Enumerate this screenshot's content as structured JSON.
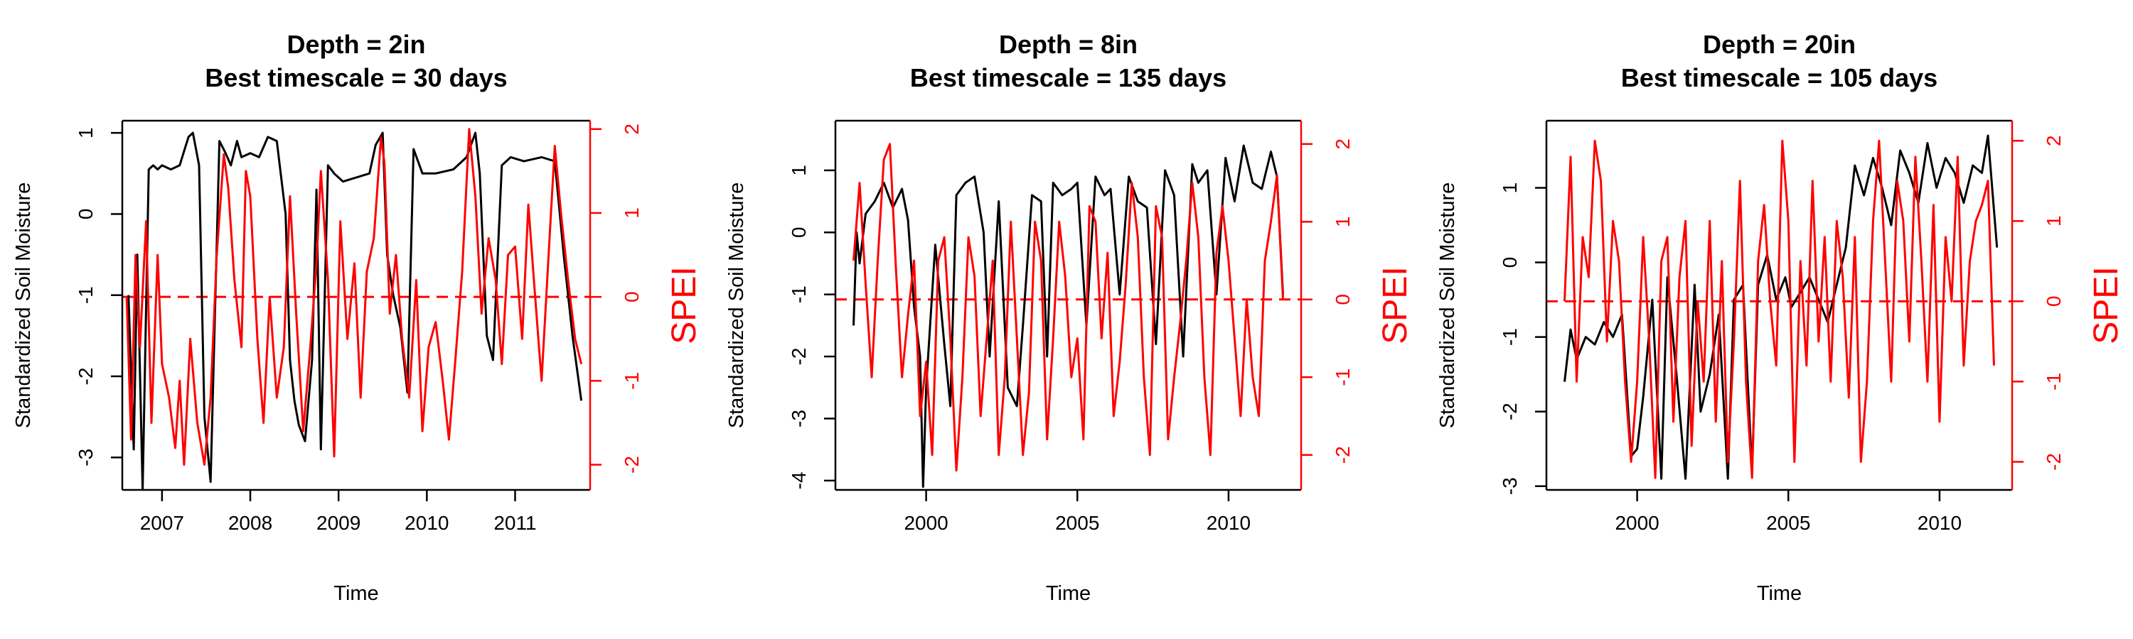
{
  "chart_data": [
    {
      "type": "line",
      "title": "Depth = 2in",
      "subtitle": "Best timescale = 30 days",
      "xlabel": "Time",
      "ylabel": "Standardized Soil Moisture",
      "y2label": "SPEI",
      "xlim": [
        2006.55,
        2011.85
      ],
      "ylim": [
        -3.4,
        1.15
      ],
      "y2lim": [
        -2.3,
        2.1
      ],
      "x_ticks": [
        2007,
        2008,
        2009,
        2010,
        2011
      ],
      "y_ticks": [
        -3,
        -2,
        -1,
        0,
        1
      ],
      "y2_ticks": [
        -2,
        -1,
        0,
        1,
        2
      ],
      "reference_line": {
        "axis": "y2",
        "value": 0,
        "style": "dashed",
        "color": "#ff0000"
      },
      "grid": false,
      "colors": {
        "soil_moisture": "#000000",
        "spei": "#ff0000"
      },
      "series": [
        {
          "axis": "y",
          "x": [
            2006.62,
            2006.68,
            2006.72,
            2006.78,
            2006.85,
            2006.9,
            2006.95,
            2007.0,
            2007.1,
            2007.2,
            2007.3,
            2007.35,
            2007.42,
            2007.48,
            2007.55,
            2007.65,
            2007.72,
            2007.78,
            2007.85,
            2007.9,
            2008.0,
            2008.1,
            2008.2,
            2008.3,
            2008.4,
            2008.45,
            2008.5,
            2008.55,
            2008.62,
            2008.7,
            2008.75,
            2008.8,
            2008.88,
            2008.95,
            2009.05,
            2009.2,
            2009.35,
            2009.42,
            2009.5,
            2009.55,
            2009.62,
            2009.7,
            2009.78,
            2009.85,
            2009.95,
            2010.1,
            2010.3,
            2010.45,
            2010.55,
            2010.6,
            2010.68,
            2010.75,
            2010.85,
            2010.95,
            2011.1,
            2011.3,
            2011.45,
            2011.55,
            2011.65,
            2011.75
          ],
          "values": [
            -1.0,
            -2.9,
            -0.5,
            -3.4,
            0.55,
            0.6,
            0.55,
            0.6,
            0.55,
            0.6,
            0.95,
            1.0,
            0.6,
            -2.5,
            -3.3,
            0.9,
            0.75,
            0.6,
            0.9,
            0.7,
            0.75,
            0.7,
            0.95,
            0.9,
            0.0,
            -1.8,
            -2.3,
            -2.6,
            -2.8,
            -1.8,
            0.3,
            -2.9,
            0.6,
            0.5,
            0.4,
            0.45,
            0.5,
            0.85,
            1.0,
            -0.5,
            -1.0,
            -1.4,
            -2.2,
            0.8,
            0.5,
            0.5,
            0.55,
            0.7,
            1.0,
            0.5,
            -1.5,
            -1.8,
            0.6,
            0.7,
            0.65,
            0.7,
            0.65,
            -0.5,
            -1.5,
            -2.3
          ]
        },
        {
          "axis": "y2",
          "x": [
            2006.6,
            2006.65,
            2006.7,
            2006.75,
            2006.82,
            2006.88,
            2006.95,
            2007.0,
            2007.08,
            2007.15,
            2007.2,
            2007.25,
            2007.32,
            2007.4,
            2007.48,
            2007.55,
            2007.62,
            2007.7,
            2007.75,
            2007.82,
            2007.9,
            2007.95,
            2008.0,
            2008.08,
            2008.15,
            2008.22,
            2008.3,
            2008.38,
            2008.45,
            2008.52,
            2008.6,
            2008.68,
            2008.75,
            2008.8,
            2008.88,
            2008.95,
            2009.02,
            2009.1,
            2009.18,
            2009.25,
            2009.32,
            2009.4,
            2009.48,
            2009.52,
            2009.58,
            2009.65,
            2009.72,
            2009.8,
            2009.88,
            2009.95,
            2010.02,
            2010.1,
            2010.18,
            2010.25,
            2010.32,
            2010.4,
            2010.48,
            2010.55,
            2010.62,
            2010.7,
            2010.78,
            2010.85,
            2010.92,
            2011.0,
            2011.08,
            2011.15,
            2011.22,
            2011.3,
            2011.38,
            2011.45,
            2011.52,
            2011.6,
            2011.68,
            2011.75
          ],
          "values": [
            0.0,
            -1.7,
            0.5,
            -0.6,
            0.9,
            -1.5,
            0.5,
            -0.8,
            -1.2,
            -1.8,
            -1.0,
            -2.0,
            -0.5,
            -1.5,
            -2.0,
            -1.2,
            0.5,
            1.7,
            1.3,
            0.2,
            -0.6,
            1.5,
            1.2,
            -0.5,
            -1.5,
            0.0,
            -1.2,
            -0.6,
            1.2,
            -0.2,
            -1.6,
            -0.6,
            0.4,
            1.5,
            0.2,
            -1.9,
            0.9,
            -0.5,
            0.4,
            -1.2,
            0.3,
            0.7,
            1.9,
            1.6,
            -0.2,
            0.5,
            -0.5,
            -1.2,
            0.2,
            -1.6,
            -0.6,
            -0.3,
            -1.0,
            -1.7,
            -0.8,
            0.3,
            2.0,
            1.2,
            -0.2,
            0.7,
            0.2,
            -0.8,
            0.5,
            0.6,
            -0.5,
            1.1,
            0.1,
            -1.0,
            0.5,
            1.8,
            1.0,
            0.2,
            -0.5,
            -0.8
          ]
        }
      ]
    },
    {
      "type": "line",
      "title": "Depth = 8in",
      "subtitle": "Best timescale = 135 days",
      "xlabel": "Time",
      "ylabel": "Standardized Soil Moisture",
      "y2label": "SPEI",
      "xlim": [
        1997.0,
        2012.4
      ],
      "ylim": [
        -4.15,
        1.8
      ],
      "y2lim": [
        -2.45,
        2.3
      ],
      "x_ticks": [
        2000,
        2005,
        2010
      ],
      "y_ticks": [
        -4,
        -3,
        -2,
        -1,
        0,
        1
      ],
      "y2_ticks": [
        -2,
        -1,
        0,
        1,
        2
      ],
      "reference_line": {
        "axis": "y2",
        "value": 0,
        "style": "dashed",
        "color": "#ff0000"
      },
      "grid": false,
      "colors": {
        "soil_moisture": "#000000",
        "spei": "#ff0000"
      },
      "series": [
        {
          "axis": "y",
          "x": [
            1997.6,
            1997.7,
            1997.8,
            1998.0,
            1998.3,
            1998.6,
            1998.9,
            1999.2,
            1999.4,
            1999.6,
            1999.8,
            1999.9,
            2000.0,
            2000.3,
            2000.6,
            2000.8,
            2001.0,
            2001.3,
            2001.6,
            2001.9,
            2002.1,
            2002.4,
            2002.7,
            2003.0,
            2003.2,
            2003.5,
            2003.8,
            2004.0,
            2004.2,
            2004.5,
            2004.8,
            2005.0,
            2005.3,
            2005.6,
            2005.9,
            2006.1,
            2006.4,
            2006.7,
            2007.0,
            2007.3,
            2007.6,
            2007.9,
            2008.2,
            2008.5,
            2008.8,
            2009.0,
            2009.3,
            2009.6,
            2009.9,
            2010.2,
            2010.5,
            2010.8,
            2011.1,
            2011.4,
            2011.6,
            2011.8
          ],
          "values": [
            -1.5,
            0.0,
            -0.5,
            0.3,
            0.5,
            0.8,
            0.4,
            0.7,
            0.2,
            -1.2,
            -2.0,
            -4.1,
            -2.5,
            -0.2,
            -1.8,
            -2.8,
            0.6,
            0.8,
            0.9,
            0.0,
            -2.0,
            0.5,
            -2.5,
            -2.8,
            -1.5,
            0.6,
            0.5,
            -2.0,
            0.8,
            0.6,
            0.7,
            0.8,
            -1.5,
            0.9,
            0.6,
            0.7,
            -1.0,
            0.9,
            0.5,
            0.4,
            -1.8,
            1.0,
            0.6,
            -2.0,
            1.1,
            0.8,
            1.0,
            -1.0,
            1.2,
            0.5,
            1.4,
            0.8,
            0.7,
            1.3,
            0.9,
            -1.0
          ]
        },
        {
          "axis": "y2",
          "x": [
            1997.6,
            1997.8,
            1998.0,
            1998.2,
            1998.4,
            1998.6,
            1998.8,
            1999.0,
            1999.2,
            1999.4,
            1999.6,
            1999.8,
            2000.0,
            2000.2,
            2000.4,
            2000.6,
            2000.8,
            2001.0,
            2001.2,
            2001.4,
            2001.6,
            2001.8,
            2002.0,
            2002.2,
            2002.4,
            2002.6,
            2002.8,
            2003.0,
            2003.2,
            2003.4,
            2003.6,
            2003.8,
            2004.0,
            2004.2,
            2004.4,
            2004.6,
            2004.8,
            2005.0,
            2005.2,
            2005.4,
            2005.6,
            2005.8,
            2006.0,
            2006.2,
            2006.4,
            2006.6,
            2006.8,
            2007.0,
            2007.2,
            2007.4,
            2007.6,
            2007.8,
            2008.0,
            2008.2,
            2008.4,
            2008.6,
            2008.8,
            2009.0,
            2009.2,
            2009.4,
            2009.6,
            2009.8,
            2010.0,
            2010.2,
            2010.4,
            2010.6,
            2010.8,
            2011.0,
            2011.2,
            2011.4,
            2011.6,
            2011.8
          ],
          "values": [
            0.5,
            1.5,
            0.2,
            -1.0,
            0.5,
            1.8,
            2.0,
            0.4,
            -1.0,
            -0.2,
            0.5,
            -1.5,
            -0.8,
            -2.0,
            0.5,
            0.8,
            -0.5,
            -2.2,
            -1.0,
            0.8,
            0.3,
            -1.5,
            -0.5,
            0.5,
            -2.0,
            -1.0,
            1.0,
            -0.5,
            -2.0,
            -1.2,
            1.0,
            0.5,
            -1.8,
            -0.5,
            1.0,
            0.3,
            -1.0,
            -0.5,
            -1.8,
            1.2,
            1.0,
            -0.5,
            0.6,
            -1.5,
            -0.8,
            0.2,
            1.5,
            0.8,
            -1.0,
            -2.0,
            1.2,
            0.8,
            -1.8,
            -1.0,
            -0.3,
            0.5,
            1.5,
            0.8,
            -1.0,
            -2.0,
            0.6,
            1.2,
            0.5,
            -0.5,
            -1.5,
            0.0,
            -1.0,
            -1.5,
            0.5,
            1.0,
            1.6,
            0.0
          ]
        }
      ]
    },
    {
      "type": "line",
      "title": "Depth = 20in",
      "subtitle": "Best timescale = 105 days",
      "xlabel": "Time",
      "ylabel": "Standardized Soil Moisture",
      "y2label": "SPEI",
      "xlim": [
        1997.0,
        2012.4
      ],
      "ylim": [
        -3.05,
        1.9
      ],
      "y2lim": [
        -2.35,
        2.25
      ],
      "x_ticks": [
        2000,
        2005,
        2010
      ],
      "y_ticks": [
        -3,
        -2,
        -1,
        0,
        1
      ],
      "y2_ticks": [
        -2,
        -1,
        0,
        1,
        2
      ],
      "reference_line": {
        "axis": "y2",
        "value": 0,
        "style": "dashed",
        "color": "#ff0000"
      },
      "grid": false,
      "colors": {
        "soil_moisture": "#000000",
        "spei": "#ff0000"
      },
      "series": [
        {
          "axis": "y",
          "x": [
            1997.6,
            1997.8,
            1998.0,
            1998.3,
            1998.6,
            1998.9,
            1999.2,
            1999.5,
            1999.8,
            2000.0,
            2000.2,
            2000.5,
            2000.8,
            2001.0,
            2001.3,
            2001.6,
            2001.9,
            2002.1,
            2002.4,
            2002.7,
            2003.0,
            2003.2,
            2003.5,
            2003.8,
            2004.0,
            2004.3,
            2004.6,
            2004.9,
            2005.1,
            2005.4,
            2005.7,
            2006.0,
            2006.3,
            2006.6,
            2006.9,
            2007.2,
            2007.5,
            2007.8,
            2008.1,
            2008.4,
            2008.7,
            2009.0,
            2009.3,
            2009.6,
            2009.9,
            2010.2,
            2010.5,
            2010.8,
            2011.1,
            2011.4,
            2011.6,
            2011.9
          ],
          "values": [
            -1.6,
            -0.9,
            -1.3,
            -1.0,
            -1.1,
            -0.8,
            -1.0,
            -0.7,
            -2.6,
            -2.5,
            -1.8,
            -0.5,
            -2.9,
            -0.2,
            -1.5,
            -2.9,
            -0.3,
            -2.0,
            -1.5,
            -0.7,
            -2.9,
            -0.5,
            -0.3,
            -2.8,
            -0.3,
            0.1,
            -0.5,
            -0.2,
            -0.6,
            -0.4,
            -0.2,
            -0.5,
            -0.8,
            -0.3,
            0.2,
            1.3,
            0.9,
            1.4,
            1.0,
            0.5,
            1.5,
            1.2,
            0.8,
            1.6,
            1.0,
            1.4,
            1.2,
            0.8,
            1.3,
            1.2,
            1.7,
            0.2
          ]
        },
        {
          "axis": "y2",
          "x": [
            1997.6,
            1997.8,
            1998.0,
            1998.2,
            1998.4,
            1998.6,
            1998.8,
            1999.0,
            1999.2,
            1999.4,
            1999.6,
            1999.8,
            2000.0,
            2000.2,
            2000.4,
            2000.6,
            2000.8,
            2001.0,
            2001.2,
            2001.4,
            2001.6,
            2001.8,
            2002.0,
            2002.2,
            2002.4,
            2002.6,
            2002.8,
            2003.0,
            2003.2,
            2003.4,
            2003.6,
            2003.8,
            2004.0,
            2004.2,
            2004.4,
            2004.6,
            2004.8,
            2005.0,
            2005.2,
            2005.4,
            2005.6,
            2005.8,
            2006.0,
            2006.2,
            2006.4,
            2006.6,
            2006.8,
            2007.0,
            2007.2,
            2007.4,
            2007.6,
            2007.8,
            2008.0,
            2008.2,
            2008.4,
            2008.6,
            2008.8,
            2009.0,
            2009.2,
            2009.4,
            2009.6,
            2009.8,
            2010.0,
            2010.2,
            2010.4,
            2010.6,
            2010.8,
            2011.0,
            2011.2,
            2011.4,
            2011.6,
            2011.8
          ],
          "values": [
            0.0,
            1.8,
            -1.0,
            0.8,
            0.3,
            2.0,
            1.5,
            -0.5,
            1.0,
            0.5,
            -1.0,
            -2.0,
            -1.0,
            0.8,
            -0.5,
            -2.2,
            0.5,
            0.8,
            -1.5,
            0.3,
            1.0,
            -1.8,
            0.0,
            -1.0,
            1.0,
            -1.5,
            0.5,
            -2.0,
            -0.5,
            1.5,
            -1.0,
            -2.2,
            0.5,
            1.2,
            0.0,
            -0.8,
            2.0,
            1.0,
            -2.0,
            0.5,
            -0.8,
            1.5,
            -0.5,
            0.8,
            -1.0,
            1.0,
            0.3,
            -1.2,
            0.8,
            -2.0,
            -1.0,
            1.0,
            2.0,
            0.5,
            -1.0,
            1.5,
            1.0,
            -0.5,
            1.8,
            0.5,
            -1.0,
            1.2,
            -1.5,
            0.8,
            0.0,
            1.8,
            -0.8,
            0.5,
            1.0,
            1.2,
            1.5,
            -0.8
          ]
        }
      ]
    }
  ]
}
